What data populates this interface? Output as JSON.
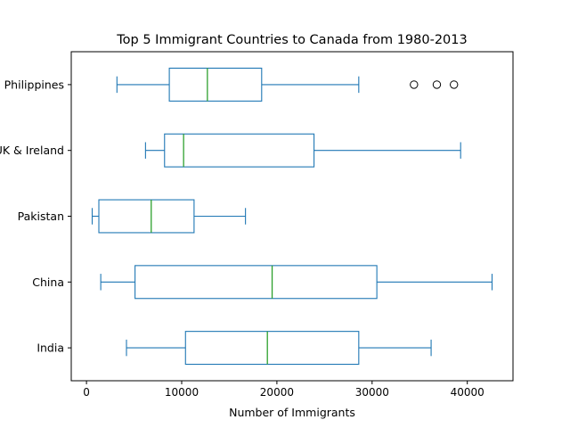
{
  "chart_data": {
    "type": "boxplot",
    "orientation": "horizontal",
    "title": "Top 5 Immigrant Countries to Canada from 1980-2013",
    "xlabel": "Number of Immigrants",
    "ylabel": "",
    "xlim": [
      -1600,
      44800
    ],
    "xticks": [
      0,
      10000,
      20000,
      30000,
      40000
    ],
    "grid": false,
    "colors": {
      "box": "#1f77b4",
      "median": "#2ca02c",
      "flier": "#000000"
    },
    "series": [
      {
        "category": "India",
        "whislo": 4200,
        "q1": 10400,
        "median": 19000,
        "q3": 28600,
        "whishi": 36200,
        "fliers": []
      },
      {
        "category": "China",
        "whislo": 1500,
        "q1": 5100,
        "median": 19500,
        "q3": 30500,
        "whishi": 42600,
        "fliers": []
      },
      {
        "category": "Pakistan",
        "whislo": 600,
        "q1": 1300,
        "median": 6800,
        "q3": 11300,
        "whishi": 16700,
        "fliers": []
      },
      {
        "category": "UK & Ireland",
        "whislo": 6200,
        "q1": 8200,
        "median": 10200,
        "q3": 23900,
        "whishi": 39300,
        "fliers": []
      },
      {
        "category": "Philippines",
        "whislo": 3200,
        "q1": 8700,
        "median": 12700,
        "q3": 18400,
        "whishi": 28600,
        "fliers": [
          34400,
          36800,
          38600
        ]
      }
    ]
  }
}
